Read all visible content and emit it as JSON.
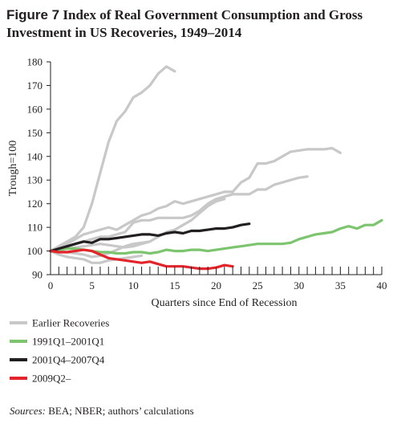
{
  "figure": {
    "label": "Figure 7",
    "title": "Index of Real Government Consumption and Gross Investment in US Recoveries, 1949–2014"
  },
  "source": {
    "label": "Sources:",
    "text": " BEA; NBER; authors’ calculations"
  },
  "colors": {
    "earlier": "#c8c8c8",
    "green": "#7cc46e",
    "black": "#231f20",
    "red": "#e3242b",
    "axis": "#231f20"
  },
  "chart_data": {
    "type": "line",
    "xlabel": "Quarters since End of Recession",
    "ylabel": "Trough=100",
    "xlim": [
      0,
      40
    ],
    "ylim": [
      90,
      180
    ],
    "xticks": [
      0,
      5,
      10,
      15,
      20,
      25,
      30,
      35,
      40
    ],
    "yticks": [
      90,
      100,
      110,
      120,
      130,
      140,
      150,
      160,
      170,
      180
    ],
    "grid": false,
    "legend_position": "bottom-left",
    "legend": [
      "Earlier Recoveries",
      "1991Q1–2001Q1",
      "2001Q4–2007Q4",
      "2009Q2–"
    ],
    "series": [
      {
        "name": "Earlier Recoveries",
        "group": "earlier",
        "x": [
          0,
          1,
          2,
          3,
          4,
          5,
          6,
          7,
          8,
          9,
          10,
          11,
          12,
          13,
          14,
          15
        ],
        "y": [
          100,
          102,
          104,
          106,
          110,
          120,
          133,
          146,
          155,
          159,
          165,
          167,
          170,
          175,
          178,
          176
        ]
      },
      {
        "name": "Earlier Recoveries",
        "group": "earlier",
        "x": [
          0,
          1,
          2,
          3,
          4,
          5,
          6,
          7,
          8,
          9,
          10,
          11,
          12,
          13,
          14,
          15,
          16,
          17,
          18,
          19,
          20,
          21,
          22,
          23,
          24,
          25,
          26,
          27,
          28,
          29,
          30,
          31,
          32,
          33,
          34,
          35
        ],
        "y": [
          100,
          101,
          103,
          105,
          107,
          108,
          109,
          110,
          109,
          111,
          113,
          115,
          116,
          118,
          119,
          121,
          120,
          121,
          122,
          123,
          124,
          125,
          125,
          129,
          131,
          137,
          137,
          138,
          140,
          142,
          142.5,
          143,
          143,
          143,
          143.5,
          141.5
        ]
      },
      {
        "name": "Earlier Recoveries",
        "group": "earlier",
        "x": [
          0,
          1,
          2,
          3,
          4,
          5,
          6,
          7,
          8,
          9,
          10,
          11,
          12,
          13,
          14,
          15,
          16,
          17,
          18,
          19,
          20,
          21,
          22,
          23,
          24,
          25,
          26,
          27,
          28,
          29,
          30,
          31
        ],
        "y": [
          100,
          101,
          102,
          103,
          104,
          105,
          106,
          106,
          107,
          108,
          112,
          113,
          113,
          114,
          114,
          114,
          114,
          115,
          117,
          120,
          122,
          123,
          124,
          124,
          124,
          126,
          126,
          128,
          129,
          130,
          131,
          131.5
        ]
      },
      {
        "name": "Earlier Recoveries",
        "group": "earlier",
        "x": [
          0,
          1,
          2,
          3,
          4,
          5,
          6,
          7,
          8,
          9,
          10,
          11,
          12
        ],
        "y": [
          100,
          100,
          99.5,
          99,
          98.5,
          97.5,
          98,
          99,
          100.5,
          102,
          103,
          103.5,
          104
        ]
      },
      {
        "name": "Earlier Recoveries",
        "group": "earlier",
        "x": [
          0,
          1,
          2,
          3,
          4,
          5,
          6,
          7,
          8,
          9,
          10,
          11
        ],
        "y": [
          100,
          98.5,
          97.5,
          97,
          96.5,
          95,
          95,
          96,
          96.5,
          97,
          97.5,
          98
        ]
      },
      {
        "name": "Earlier Recoveries",
        "group": "earlier",
        "x": [
          0,
          1,
          2,
          3,
          4,
          5,
          6,
          7,
          8,
          9,
          10,
          11,
          12,
          13,
          14,
          15,
          16,
          17,
          18,
          19,
          20,
          21
        ],
        "y": [
          100,
          100.5,
          101,
          101.5,
          102,
          102.5,
          103,
          102.5,
          102,
          101.5,
          102,
          103,
          104,
          106,
          108,
          109,
          111,
          113,
          116,
          119,
          121,
          122
        ]
      },
      {
        "name": "1991Q1–2001Q1",
        "group": "green",
        "x": [
          0,
          1,
          2,
          3,
          4,
          5,
          6,
          7,
          8,
          9,
          10,
          11,
          12,
          13,
          14,
          15,
          16,
          17,
          18,
          19,
          20,
          21,
          22,
          23,
          24,
          25,
          26,
          27,
          28,
          29,
          30,
          31,
          32,
          33,
          34,
          35,
          36,
          37,
          38,
          39,
          40
        ],
        "y": [
          100,
          100.5,
          101,
          101,
          100.5,
          100,
          99.5,
          99.5,
          99,
          99,
          99.5,
          99.5,
          99,
          99.5,
          100.5,
          100,
          100,
          100.5,
          100.5,
          100,
          100.5,
          101,
          101.5,
          102,
          102.5,
          103,
          103,
          103,
          103,
          103.5,
          105,
          106,
          107,
          107.5,
          108,
          109.5,
          110.5,
          109.5,
          111,
          111,
          113
        ]
      },
      {
        "name": "2001Q4–2007Q4",
        "group": "black",
        "x": [
          0,
          1,
          2,
          3,
          4,
          5,
          6,
          7,
          8,
          9,
          10,
          11,
          12,
          13,
          14,
          15,
          16,
          17,
          18,
          19,
          20,
          21,
          22,
          23,
          24
        ],
        "y": [
          100,
          101,
          102,
          103,
          104,
          103.5,
          105,
          105,
          105.5,
          106,
          106.5,
          107,
          107,
          106.5,
          107.5,
          108,
          107.5,
          108.5,
          108.5,
          109,
          109.5,
          109.5,
          110,
          111,
          111.5
        ]
      },
      {
        "name": "2009Q2–",
        "group": "red",
        "x": [
          0,
          1,
          2,
          3,
          4,
          5,
          6,
          7,
          8,
          9,
          10,
          11,
          12,
          13,
          14,
          15,
          16,
          17,
          18,
          19,
          20,
          21,
          22
        ],
        "y": [
          100,
          99.5,
          99.5,
          100,
          100.5,
          100,
          98.5,
          97,
          96.5,
          96,
          95.5,
          95,
          95.5,
          94.5,
          93.5,
          93.5,
          93.5,
          93,
          92.5,
          92.5,
          93,
          94,
          93.5
        ]
      }
    ]
  }
}
